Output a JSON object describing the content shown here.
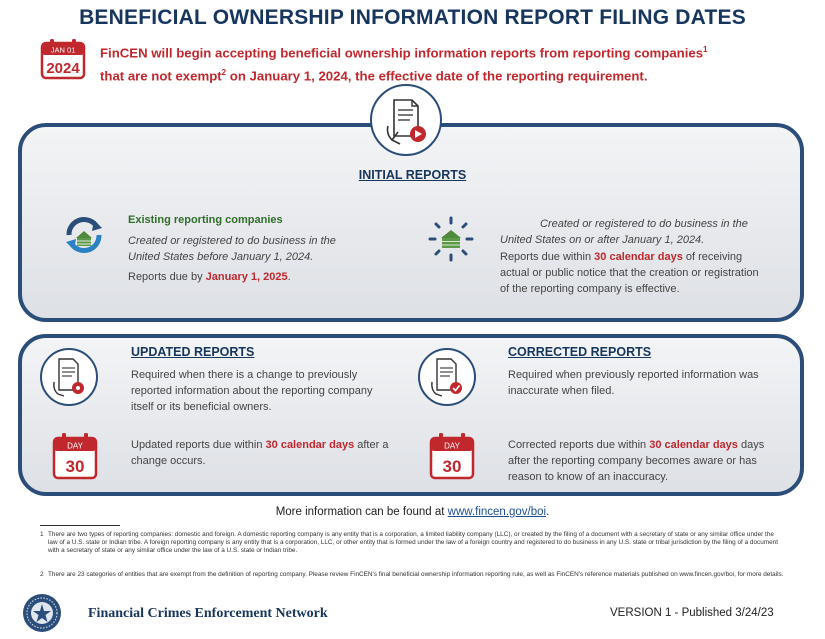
{
  "title": "BENEFICIAL OWNERSHIP INFORMATION REPORT FILING DATES",
  "calendar_icon": {
    "month": "JAN 01",
    "year": "2024"
  },
  "intro": {
    "line1": "FinCEN will begin accepting beneficial ownership information reports from reporting companies",
    "sup1": "1",
    "line2a": "that are not exempt",
    "sup2": "2",
    "line2b": " on January 1, 2024, the effective date of the reporting requirement."
  },
  "initial": {
    "heading": "INITIAL REPORTS",
    "existing": {
      "heading": "Existing reporting companies",
      "desc": "Created or registered to do business in the United States before January 1, 2024.",
      "due_prefix": "Reports due by ",
      "due_date": "January 1, 2025",
      "due_suffix": "."
    },
    "new": {
      "desc": "Created or registered to do business in the United States on or after January 1, 2024.",
      "due_prefix": "Reports due within ",
      "due_highlight": "30 calendar days",
      "due_suffix": " of receiving actual or public notice that the creation or registration of the reporting company is effective."
    }
  },
  "updated": {
    "heading": "UPDATED REPORTS",
    "desc": "Required when there is a change to previously reported information about the reporting company itself or its beneficial owners.",
    "due_prefix": "Updated reports due within ",
    "due_highlight": "30 calendar days",
    "due_suffix": " after a change occurs."
  },
  "corrected": {
    "heading": "CORRECTED REPORTS",
    "desc": "Required when previously reported information was inaccurate when filed.",
    "due_prefix": "Corrected reports due within ",
    "due_highlight": "30 calendar days",
    "due_suffix": " days after the reporting company becomes aware or has reason to know of an inaccuracy."
  },
  "day_icon": {
    "label": "DAY",
    "number": "30"
  },
  "more_info": {
    "prefix": "More information can be found at ",
    "link": "www.fincen.gov/boi",
    "suffix": "."
  },
  "footnotes": [
    {
      "num": "1",
      "text": "There are two types of reporting companies: domestic and foreign. A domestic reporting company is any entity that is a corporation, a limited liability company (LLC), or created by the filing of a document with a secretary of state or any similar office under the law of a U.S. state or Indian tribe. A foreign reporting company is any entity that is a corporation, LLC, or other entity that is formed under the law of a foreign country and registered to do business in any U.S. state or tribal jurisdiction by the filing of a document with a secretary of state or any similar office under the law of a U.S. state or Indian tribe."
    },
    {
      "num": "2",
      "text": "There are 23 categories of entities that are exempt from the definition of reporting company. Please review FinCEN's final beneficial ownership information reporting rule, as well as FinCEN's reference materials published on www.fincen.gov/boi, for more details."
    }
  ],
  "footer": {
    "org": "Financial Crimes Enforcement Network",
    "version": "VERSION 1 - Published 3/24/23"
  },
  "colors": {
    "navy": "#17365d",
    "border": "#2b4d7a",
    "red": "#c0282e",
    "green": "#2f6f2a"
  }
}
